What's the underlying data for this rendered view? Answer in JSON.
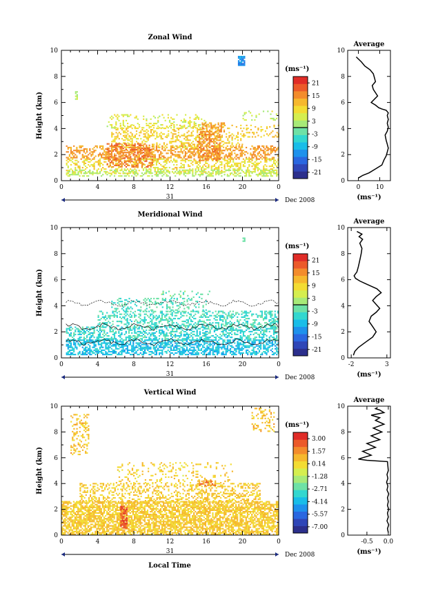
{
  "x_ticks": [
    "0",
    "4",
    "8",
    "12",
    "16",
    "20",
    "0"
  ],
  "date_day": "31",
  "date_label": "Dec 2008",
  "xlabel_bottom": "Local Time",
  "ylabel": "Height (km)",
  "y_ticks": [
    "0",
    "2",
    "4",
    "6",
    "8",
    "10"
  ],
  "colorbar_colors": [
    "#2c2f8c",
    "#2f46b7",
    "#2a67e0",
    "#1e91ec",
    "#19bde8",
    "#33d7cf",
    "#6ee1a6",
    "#a7ea78",
    "#d5ee4f",
    "#f3dc33",
    "#f6b82e",
    "#f38c2c",
    "#ec5a2a",
    "#e02c27"
  ],
  "chart_data": [
    {
      "type": "heatmap",
      "title": "Zonal Wind",
      "xlabel": "",
      "ylabel": "Height (km)",
      "xlim": [
        0,
        24
      ],
      "ylim": [
        0,
        10
      ],
      "colorbar_unit": "(ms⁻¹)",
      "colorbar_ticks": [
        "21",
        "15",
        "9",
        "3",
        "-3",
        "-9",
        "-15",
        "-21"
      ],
      "colorbar_range": [
        -24,
        24
      ],
      "zero_line": true,
      "contours": false,
      "regions": [
        {
          "x0": 0.5,
          "x1": 24,
          "y0": 1.6,
          "y1": 2.6,
          "v": 14,
          "d": 0.45
        },
        {
          "x0": 0.5,
          "x1": 24,
          "y0": 0.5,
          "y1": 1.7,
          "v": 8,
          "d": 0.35
        },
        {
          "x0": 0.5,
          "x1": 24,
          "y0": 0.3,
          "y1": 0.8,
          "v": 3,
          "d": 0.4
        },
        {
          "x0": 5.5,
          "x1": 20,
          "y0": 2.5,
          "y1": 3.4,
          "v": 9,
          "d": 0.3
        },
        {
          "x0": 5.5,
          "x1": 24,
          "y0": 3.3,
          "y1": 4.2,
          "v": 10,
          "d": 0.25
        },
        {
          "x0": 5,
          "x1": 16,
          "y0": 4.0,
          "y1": 5.1,
          "v": 6,
          "d": 0.2
        },
        {
          "x0": 5,
          "x1": 10,
          "y0": 1.0,
          "y1": 2.8,
          "v": 16,
          "d": 0.5
        },
        {
          "x0": 15,
          "x1": 17.5,
          "y0": 1.5,
          "y1": 3.8,
          "v": 15,
          "d": 0.5
        },
        {
          "x0": 15.5,
          "x1": 18,
          "y0": 3.7,
          "y1": 4.4,
          "v": 14,
          "d": 0.4
        },
        {
          "x0": 19.5,
          "x1": 20.2,
          "y0": 8.8,
          "y1": 9.5,
          "v": -12,
          "d": 0.9
        },
        {
          "x0": 1.5,
          "x1": 1.8,
          "y0": 6.2,
          "y1": 6.8,
          "v": 3,
          "d": 0.7
        },
        {
          "x0": 20,
          "x1": 24,
          "y0": 4.6,
          "y1": 5.3,
          "v": 4,
          "d": 0.15
        }
      ],
      "average": {
        "label": "Average",
        "xlabel": "(ms⁻¹)",
        "xticks": [
          "0",
          "10"
        ],
        "tick_values": [
          0,
          10
        ],
        "xlim": [
          -5,
          15
        ],
        "ylim": [
          0,
          10
        ],
        "x": [
          0,
          2,
          5,
          8,
          11,
          12,
          13,
          13.5,
          14,
          13.5,
          13,
          12.5,
          13.5,
          14,
          13.5,
          14,
          13.5,
          14,
          13,
          11,
          9.5,
          8,
          6,
          9,
          7,
          6.5,
          8,
          7.5,
          7,
          5.5,
          3,
          1.5,
          -1
        ],
        "y": [
          0.2,
          0.4,
          0.6,
          0.9,
          1.2,
          1.6,
          1.9,
          2.2,
          2.5,
          2.8,
          3.1,
          3.5,
          3.8,
          4.1,
          4.4,
          4.7,
          5.0,
          5.2,
          5.4,
          5.5,
          5.6,
          5.8,
          6.0,
          6.5,
          7.0,
          7.3,
          7.6,
          7.9,
          8.2,
          8.5,
          8.8,
          9.1,
          9.5
        ]
      }
    },
    {
      "type": "heatmap",
      "title": "Meridional Wind",
      "xlabel": "",
      "ylabel": "Height (km)",
      "xlim": [
        0,
        24
      ],
      "ylim": [
        0,
        10
      ],
      "colorbar_unit": "(ms⁻¹)",
      "colorbar_ticks": [
        "21",
        "15",
        "9",
        "3",
        "-3",
        "-9",
        "-15",
        "-21"
      ],
      "colorbar_range": [
        -24,
        24
      ],
      "zero_line": true,
      "contours": true,
      "regions": [
        {
          "x0": 0.5,
          "x1": 24,
          "y0": 0.2,
          "y1": 1.4,
          "v": -8,
          "d": 0.55
        },
        {
          "x0": 0.5,
          "x1": 24,
          "y0": 1.3,
          "y1": 2.4,
          "v": -5,
          "d": 0.45
        },
        {
          "x0": 4,
          "x1": 24,
          "y0": 2.3,
          "y1": 3.6,
          "v": -4,
          "d": 0.35
        },
        {
          "x0": 5.5,
          "x1": 16,
          "y0": 3.5,
          "y1": 4.6,
          "v": -3,
          "d": 0.25
        },
        {
          "x0": 11,
          "x1": 16.5,
          "y0": 4.6,
          "y1": 5.1,
          "v": -2,
          "d": 0.2
        },
        {
          "x0": 20,
          "x1": 20.3,
          "y0": 8.9,
          "y1": 9.2,
          "v": -3,
          "d": 0.8
        }
      ],
      "average": {
        "label": "Average",
        "xlabel": "(ms⁻¹)",
        "xticks": [
          "-2",
          "3"
        ],
        "tick_values": [
          -2,
          3
        ],
        "xlim": [
          -2.5,
          3.5
        ],
        "ylim": [
          0,
          10
        ],
        "x": [
          -1.7,
          -1.5,
          -1,
          0,
          1,
          1.5,
          1,
          0.5,
          0.8,
          1.5,
          2,
          1.5,
          1,
          1.5,
          2.2,
          1.6,
          0.8,
          0,
          -0.8,
          -1.4,
          -1.6,
          -1.2,
          -1,
          -0.8,
          -0.6,
          -0.5,
          -0.8,
          -0.4,
          -0.9,
          -0.5,
          -1.2
        ],
        "y": [
          0.2,
          0.5,
          0.8,
          1.2,
          1.6,
          2.0,
          2.4,
          2.8,
          3.2,
          3.5,
          3.8,
          4.1,
          4.4,
          4.7,
          5.0,
          5.3,
          5.5,
          5.7,
          5.9,
          6.1,
          6.3,
          6.6,
          7.0,
          7.5,
          8.0,
          8.4,
          8.8,
          9.1,
          9.3,
          9.5,
          9.7
        ]
      }
    },
    {
      "type": "heatmap",
      "title": "Vertical Wind",
      "xlabel": "Local Time",
      "ylabel": "Height (km)",
      "xlim": [
        0,
        24
      ],
      "ylim": [
        0,
        10
      ],
      "colorbar_unit": "(ms⁻¹)",
      "colorbar_ticks": [
        "3.00",
        "1.57",
        "0.14",
        "-1.28",
        "-2.71",
        "-4.14",
        "-5.57",
        "-7.00"
      ],
      "colorbar_range": [
        -7.71,
        3.71
      ],
      "zero_line": false,
      "contours": false,
      "regions": [
        {
          "x0": 0,
          "x1": 24,
          "y0": 0,
          "y1": 2.6,
          "v": 0.5,
          "d": 0.7
        },
        {
          "x0": 2,
          "x1": 22,
          "y0": 2.5,
          "y1": 4.0,
          "v": 0.5,
          "d": 0.35
        },
        {
          "x0": 6,
          "x1": 19,
          "y0": 4.0,
          "y1": 5.6,
          "v": 0.3,
          "d": 0.15
        },
        {
          "x0": 1,
          "x1": 3,
          "y0": 6.2,
          "y1": 9.3,
          "v": 0.6,
          "d": 0.3
        },
        {
          "x0": 21,
          "x1": 23.5,
          "y0": 8.0,
          "y1": 9.8,
          "v": 0.6,
          "d": 0.3
        },
        {
          "x0": 6.5,
          "x1": 7.2,
          "y0": 0.5,
          "y1": 2.2,
          "v": 2.5,
          "d": 0.8
        },
        {
          "x0": 15,
          "x1": 17,
          "y0": 3.8,
          "y1": 4.2,
          "v": 1.6,
          "d": 0.4
        }
      ],
      "average": {
        "label": "Average",
        "xlabel": "(ms⁻¹)",
        "xticks": [
          "-0.5",
          "0.0"
        ],
        "tick_values": [
          -0.5,
          0.0
        ],
        "xlim": [
          -0.95,
          0.05
        ],
        "ylim": [
          0,
          10
        ],
        "x": [
          0,
          -0.02,
          0.01,
          -0.03,
          0,
          -0.02,
          0.01,
          -0.02,
          0,
          -0.02,
          0.01,
          -0.03,
          -0.01,
          -0.04,
          -0.01,
          -0.03,
          0,
          -0.02,
          -0.5,
          -0.7,
          -0.4,
          -0.6,
          -0.3,
          -0.5,
          -0.2,
          -0.4,
          -0.15,
          -0.35,
          -0.1,
          -0.3,
          -0.2,
          -0.4,
          -0.1,
          -0.2,
          -0.3,
          -0.25
        ],
        "y": [
          0.2,
          0.5,
          0.8,
          1.1,
          1.4,
          1.7,
          2.0,
          2.3,
          2.6,
          2.9,
          3.2,
          3.5,
          3.8,
          4.1,
          4.4,
          4.7,
          5.0,
          5.7,
          5.8,
          5.9,
          6.2,
          6.5,
          6.8,
          7.1,
          7.4,
          7.7,
          8.0,
          8.3,
          8.6,
          8.9,
          9.1,
          9.3,
          9.5,
          9.7,
          9.8,
          9.9
        ]
      }
    }
  ]
}
